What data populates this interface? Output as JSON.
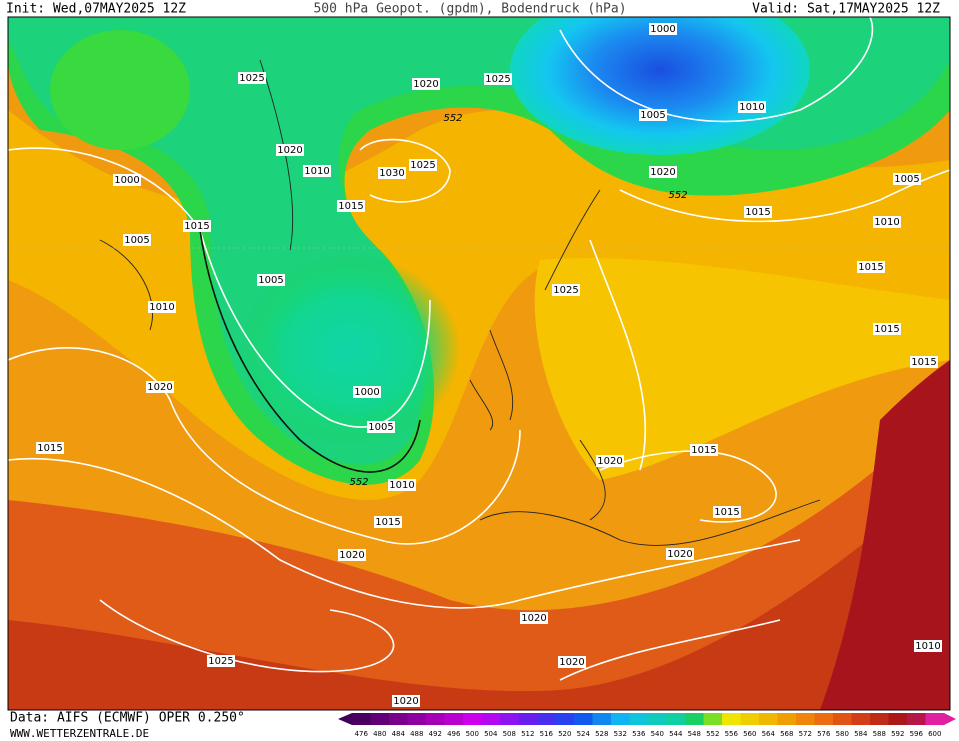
{
  "header": {
    "init": "Init: Wed,07MAY2025 12Z",
    "title": "500 hPa Geopot. (gpdm), Bodendruck (hPa)",
    "valid": "Valid: Sat,17MAY2025 12Z"
  },
  "isobar_labels": [
    "1000",
    "1025",
    "1020",
    "1025",
    "552",
    "1010",
    "1005",
    "1020",
    "1010",
    "1030",
    "1025",
    "1020",
    "552",
    "1000",
    "1015",
    "1015",
    "1015",
    "1005",
    "1010",
    "1005",
    "1015",
    "1005",
    "1025",
    "1010",
    "1015",
    "1015",
    "1000",
    "1020",
    "1005",
    "1015",
    "1015",
    "1020",
    "552",
    "1010",
    "1015",
    "1015",
    "1020",
    "1020",
    "1020",
    "1010",
    "1025",
    "1020",
    "1020"
  ],
  "legend": {
    "ticks": [
      476,
      480,
      484,
      488,
      492,
      496,
      500,
      504,
      508,
      512,
      516,
      520,
      524,
      528,
      532,
      536,
      540,
      544,
      548,
      552,
      556,
      560,
      564,
      568,
      572,
      576,
      580,
      584,
      588,
      592,
      596,
      600
    ]
  },
  "footer": {
    "source": "Data: AIFS (ECMWF) OPER 0.250°",
    "site": "WWW.WETTERZENTRALE.DE"
  }
}
